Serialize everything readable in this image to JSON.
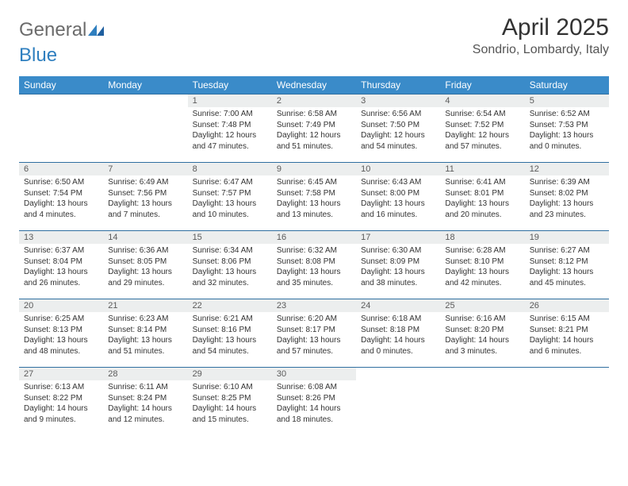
{
  "logo": {
    "text_gray": "General",
    "text_blue": "Blue"
  },
  "title": "April 2025",
  "location": "Sondrio, Lombardy, Italy",
  "colors": {
    "header_bg": "#3a8bc9",
    "header_text": "#ffffff",
    "daynum_bg": "#eceeee",
    "row_border": "#2f6fa0",
    "body_text": "#333333",
    "logo_gray": "#6b6b6b",
    "logo_blue": "#2f7fbf"
  },
  "day_headers": [
    "Sunday",
    "Monday",
    "Tuesday",
    "Wednesday",
    "Thursday",
    "Friday",
    "Saturday"
  ],
  "weeks": [
    [
      {
        "n": "",
        "lines": [
          "",
          "",
          ""
        ]
      },
      {
        "n": "",
        "lines": [
          "",
          "",
          ""
        ]
      },
      {
        "n": "1",
        "lines": [
          "Sunrise: 7:00 AM",
          "Sunset: 7:48 PM",
          "Daylight: 12 hours and 47 minutes."
        ]
      },
      {
        "n": "2",
        "lines": [
          "Sunrise: 6:58 AM",
          "Sunset: 7:49 PM",
          "Daylight: 12 hours and 51 minutes."
        ]
      },
      {
        "n": "3",
        "lines": [
          "Sunrise: 6:56 AM",
          "Sunset: 7:50 PM",
          "Daylight: 12 hours and 54 minutes."
        ]
      },
      {
        "n": "4",
        "lines": [
          "Sunrise: 6:54 AM",
          "Sunset: 7:52 PM",
          "Daylight: 12 hours and 57 minutes."
        ]
      },
      {
        "n": "5",
        "lines": [
          "Sunrise: 6:52 AM",
          "Sunset: 7:53 PM",
          "Daylight: 13 hours and 0 minutes."
        ]
      }
    ],
    [
      {
        "n": "6",
        "lines": [
          "Sunrise: 6:50 AM",
          "Sunset: 7:54 PM",
          "Daylight: 13 hours and 4 minutes."
        ]
      },
      {
        "n": "7",
        "lines": [
          "Sunrise: 6:49 AM",
          "Sunset: 7:56 PM",
          "Daylight: 13 hours and 7 minutes."
        ]
      },
      {
        "n": "8",
        "lines": [
          "Sunrise: 6:47 AM",
          "Sunset: 7:57 PM",
          "Daylight: 13 hours and 10 minutes."
        ]
      },
      {
        "n": "9",
        "lines": [
          "Sunrise: 6:45 AM",
          "Sunset: 7:58 PM",
          "Daylight: 13 hours and 13 minutes."
        ]
      },
      {
        "n": "10",
        "lines": [
          "Sunrise: 6:43 AM",
          "Sunset: 8:00 PM",
          "Daylight: 13 hours and 16 minutes."
        ]
      },
      {
        "n": "11",
        "lines": [
          "Sunrise: 6:41 AM",
          "Sunset: 8:01 PM",
          "Daylight: 13 hours and 20 minutes."
        ]
      },
      {
        "n": "12",
        "lines": [
          "Sunrise: 6:39 AM",
          "Sunset: 8:02 PM",
          "Daylight: 13 hours and 23 minutes."
        ]
      }
    ],
    [
      {
        "n": "13",
        "lines": [
          "Sunrise: 6:37 AM",
          "Sunset: 8:04 PM",
          "Daylight: 13 hours and 26 minutes."
        ]
      },
      {
        "n": "14",
        "lines": [
          "Sunrise: 6:36 AM",
          "Sunset: 8:05 PM",
          "Daylight: 13 hours and 29 minutes."
        ]
      },
      {
        "n": "15",
        "lines": [
          "Sunrise: 6:34 AM",
          "Sunset: 8:06 PM",
          "Daylight: 13 hours and 32 minutes."
        ]
      },
      {
        "n": "16",
        "lines": [
          "Sunrise: 6:32 AM",
          "Sunset: 8:08 PM",
          "Daylight: 13 hours and 35 minutes."
        ]
      },
      {
        "n": "17",
        "lines": [
          "Sunrise: 6:30 AM",
          "Sunset: 8:09 PM",
          "Daylight: 13 hours and 38 minutes."
        ]
      },
      {
        "n": "18",
        "lines": [
          "Sunrise: 6:28 AM",
          "Sunset: 8:10 PM",
          "Daylight: 13 hours and 42 minutes."
        ]
      },
      {
        "n": "19",
        "lines": [
          "Sunrise: 6:27 AM",
          "Sunset: 8:12 PM",
          "Daylight: 13 hours and 45 minutes."
        ]
      }
    ],
    [
      {
        "n": "20",
        "lines": [
          "Sunrise: 6:25 AM",
          "Sunset: 8:13 PM",
          "Daylight: 13 hours and 48 minutes."
        ]
      },
      {
        "n": "21",
        "lines": [
          "Sunrise: 6:23 AM",
          "Sunset: 8:14 PM",
          "Daylight: 13 hours and 51 minutes."
        ]
      },
      {
        "n": "22",
        "lines": [
          "Sunrise: 6:21 AM",
          "Sunset: 8:16 PM",
          "Daylight: 13 hours and 54 minutes."
        ]
      },
      {
        "n": "23",
        "lines": [
          "Sunrise: 6:20 AM",
          "Sunset: 8:17 PM",
          "Daylight: 13 hours and 57 minutes."
        ]
      },
      {
        "n": "24",
        "lines": [
          "Sunrise: 6:18 AM",
          "Sunset: 8:18 PM",
          "Daylight: 14 hours and 0 minutes."
        ]
      },
      {
        "n": "25",
        "lines": [
          "Sunrise: 6:16 AM",
          "Sunset: 8:20 PM",
          "Daylight: 14 hours and 3 minutes."
        ]
      },
      {
        "n": "26",
        "lines": [
          "Sunrise: 6:15 AM",
          "Sunset: 8:21 PM",
          "Daylight: 14 hours and 6 minutes."
        ]
      }
    ],
    [
      {
        "n": "27",
        "lines": [
          "Sunrise: 6:13 AM",
          "Sunset: 8:22 PM",
          "Daylight: 14 hours and 9 minutes."
        ]
      },
      {
        "n": "28",
        "lines": [
          "Sunrise: 6:11 AM",
          "Sunset: 8:24 PM",
          "Daylight: 14 hours and 12 minutes."
        ]
      },
      {
        "n": "29",
        "lines": [
          "Sunrise: 6:10 AM",
          "Sunset: 8:25 PM",
          "Daylight: 14 hours and 15 minutes."
        ]
      },
      {
        "n": "30",
        "lines": [
          "Sunrise: 6:08 AM",
          "Sunset: 8:26 PM",
          "Daylight: 14 hours and 18 minutes."
        ]
      },
      {
        "n": "",
        "lines": [
          "",
          "",
          ""
        ]
      },
      {
        "n": "",
        "lines": [
          "",
          "",
          ""
        ]
      },
      {
        "n": "",
        "lines": [
          "",
          "",
          ""
        ]
      }
    ]
  ]
}
